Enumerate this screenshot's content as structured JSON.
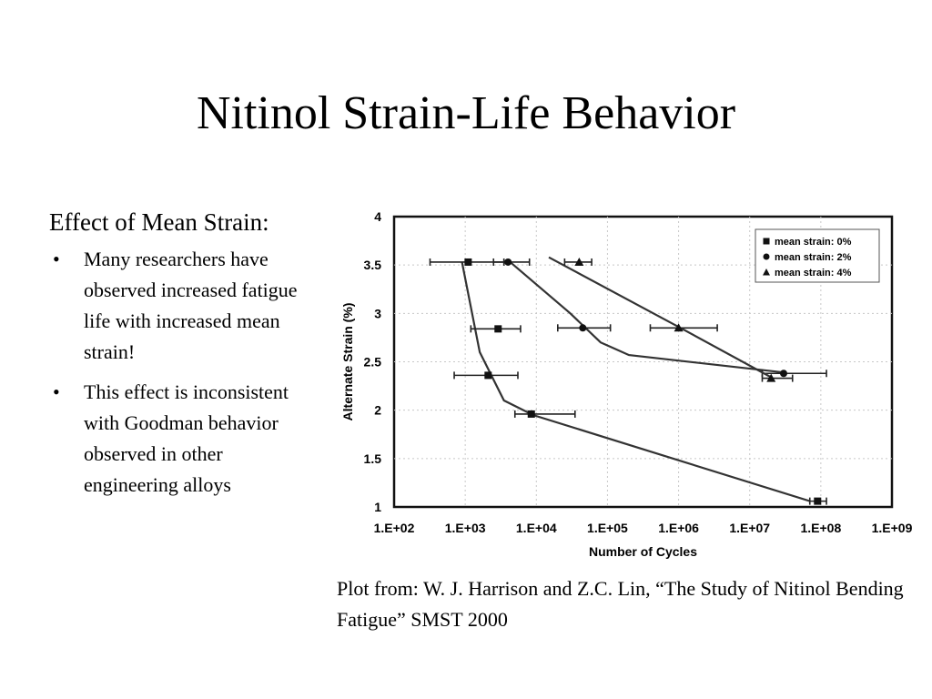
{
  "slide": {
    "title": "Nitinol Strain-Life Behavior",
    "heading": "Effect of Mean Strain:",
    "bullets": [
      "Many researchers have observed increased fatigue life with increased mean strain!",
      "This effect is inconsistent with Goodman behavior observed in other engineering alloys"
    ],
    "bullet_symbol": "•",
    "caption": "Plot from: W. J. Harrison and Z.C. Lin, “The Study of Nitinol Bending Fatigue” SMST 2000"
  },
  "chart_data": {
    "type": "scatter",
    "title": "",
    "xlabel": "Number of Cycles",
    "ylabel": "Alternate Strain (%)",
    "x_scale": "log",
    "x_ticks": [
      100,
      1000,
      10000,
      100000,
      1000000,
      10000000,
      100000000,
      1000000000
    ],
    "x_tick_labels": [
      "1.E+02",
      "1.E+03",
      "1.E+04",
      "1.E+05",
      "1.E+06",
      "1.E+07",
      "1.E+08",
      "1.E+09"
    ],
    "xlim": [
      100,
      1000000000
    ],
    "ylim": [
      1,
      4
    ],
    "y_ticks": [
      1,
      1.5,
      2,
      2.5,
      3,
      3.5,
      4
    ],
    "y_tick_labels": [
      "1",
      "1.5",
      "2",
      "2.5",
      "3",
      "3.5",
      "4"
    ],
    "grid": true,
    "legend_position": "top-right",
    "series": [
      {
        "name": "mean strain: 0%",
        "marker": "square",
        "points": [
          {
            "x": 1100,
            "y": 3.53,
            "xerr": [
              320,
              3500
            ]
          },
          {
            "x": 2900,
            "y": 2.84,
            "xerr": [
              1200,
              6000
            ]
          },
          {
            "x": 2100,
            "y": 2.36,
            "xerr": [
              700,
              5500
            ]
          },
          {
            "x": 8500,
            "y": 1.96,
            "xerr": [
              5000,
              35000
            ]
          },
          {
            "x": 90000000,
            "y": 1.06,
            "xerr": [
              70000000,
              120000000
            ]
          }
        ],
        "curve": [
          [
            900,
            3.53
          ],
          [
            1600,
            2.6
          ],
          [
            3500,
            2.1
          ],
          [
            9000,
            1.95
          ],
          [
            70000000,
            1.06
          ]
        ]
      },
      {
        "name": "mean strain: 2%",
        "marker": "circle",
        "points": [
          {
            "x": 4000,
            "y": 3.53,
            "xerr": [
              2500,
              8000
            ]
          },
          {
            "x": 45000,
            "y": 2.85,
            "xerr": [
              20000,
              110000
            ]
          },
          {
            "x": 30000000,
            "y": 2.38,
            "xerr": [
              15000000,
              120000000
            ]
          }
        ],
        "curve": [
          [
            4000,
            3.55
          ],
          [
            30000,
            3.0
          ],
          [
            80000,
            2.7
          ],
          [
            200000,
            2.57
          ],
          [
            30000000,
            2.39
          ]
        ]
      },
      {
        "name": "mean strain: 4%",
        "marker": "triangle",
        "points": [
          {
            "x": 40000,
            "y": 3.53,
            "xerr": [
              25000,
              60000
            ]
          },
          {
            "x": 1000000,
            "y": 2.85,
            "xerr": [
              400000,
              3500000
            ]
          },
          {
            "x": 20000000,
            "y": 2.33,
            "xerr": [
              15000000,
              40000000
            ]
          }
        ],
        "curve": [
          [
            15000,
            3.58
          ],
          [
            1000000,
            2.86
          ],
          [
            20000000,
            2.34
          ]
        ]
      }
    ]
  },
  "colors": {
    "text": "#000000",
    "background": "#ffffff",
    "plot_line": "#333333",
    "grid": "#c8c8c8"
  }
}
